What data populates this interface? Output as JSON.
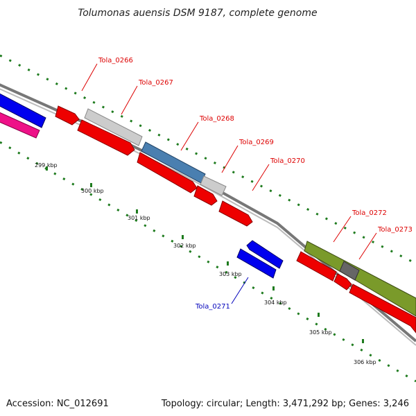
{
  "title": "Tolumonas auensis DSM 9187, complete genome",
  "footer": {
    "accession": "Accession: NC_012691",
    "summary": "Topology: circular; Length: 3,471,292 bp; Genes: 3,246"
  },
  "colors": {
    "backbone": "#8a8a8a",
    "tick": "#1e7b1e",
    "forward_label": "#dd0000",
    "reverse_label": "#0000bb"
  },
  "ruler": [
    "299 kbp",
    "300 kbp",
    "301 kbp",
    "302 kbp",
    "303 kbp",
    "304 kbp",
    "305 kbp",
    "306 kbp"
  ],
  "genes": [
    {
      "name": "Tola_0266",
      "strand": "forward"
    },
    {
      "name": "Tola_0267",
      "strand": "forward"
    },
    {
      "name": "Tola_0268",
      "strand": "forward"
    },
    {
      "name": "Tola_0269",
      "strand": "forward"
    },
    {
      "name": "Tola_0270",
      "strand": "forward"
    },
    {
      "name": "Tola_0271",
      "strand": "reverse"
    },
    {
      "name": "Tola_0272",
      "strand": "forward"
    },
    {
      "name": "Tola_0273",
      "strand": "forward"
    }
  ]
}
